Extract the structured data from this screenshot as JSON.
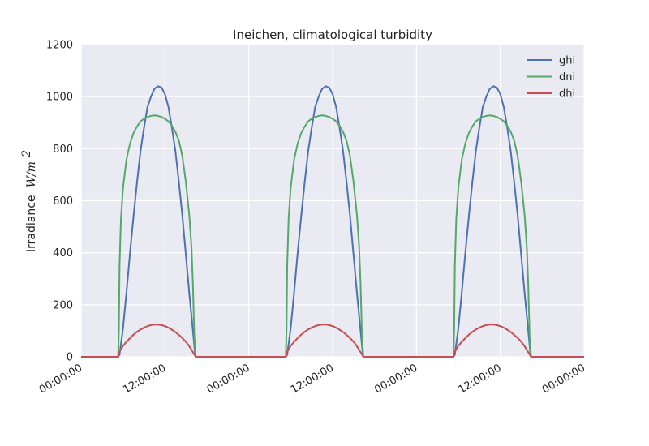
{
  "chart_data": {
    "type": "line",
    "title": "Ineichen, climatological turbidity",
    "ylabel_text": "Irradiance",
    "ylabel_math": "W/m",
    "ylabel_sup": "2",
    "xlabel": "",
    "ylim": [
      0,
      1200
    ],
    "y_ticks": [
      "0",
      "200",
      "400",
      "600",
      "800",
      "1000",
      "1200"
    ],
    "y_tick_values": [
      0,
      200,
      400,
      600,
      800,
      1000,
      1200
    ],
    "xlim_hours": [
      0,
      72
    ],
    "x_ticks": [
      "00:00:00",
      "12:00:00",
      "00:00:00",
      "12:00:00",
      "00:00:00",
      "12:00:00",
      "00:00:00"
    ],
    "x_tick_hours": [
      0,
      12,
      24,
      36,
      48,
      60,
      72
    ],
    "grid": true,
    "legend_position": "top-right",
    "series": [
      {
        "name": "ghi",
        "color": "#4c72b0",
        "points": [
          [
            0,
            0
          ],
          [
            5.3,
            0
          ],
          [
            5.5,
            8
          ],
          [
            6,
            110
          ],
          [
            6.5,
            250
          ],
          [
            7,
            400
          ],
          [
            7.5,
            540
          ],
          [
            8,
            670
          ],
          [
            8.5,
            790
          ],
          [
            9,
            880
          ],
          [
            9.5,
            960
          ],
          [
            10,
            1000
          ],
          [
            10.5,
            1030
          ],
          [
            11,
            1040
          ],
          [
            11.5,
            1035
          ],
          [
            12,
            1010
          ],
          [
            12.5,
            960
          ],
          [
            13,
            880
          ],
          [
            13.5,
            790
          ],
          [
            14,
            670
          ],
          [
            14.5,
            540
          ],
          [
            15,
            390
          ],
          [
            15.5,
            240
          ],
          [
            16,
            100
          ],
          [
            16.3,
            15
          ],
          [
            16.4,
            0
          ],
          [
            29.3,
            0
          ],
          [
            29.5,
            8
          ],
          [
            30,
            110
          ],
          [
            30.5,
            250
          ],
          [
            31,
            400
          ],
          [
            31.5,
            540
          ],
          [
            32,
            670
          ],
          [
            32.5,
            790
          ],
          [
            33,
            880
          ],
          [
            33.5,
            960
          ],
          [
            34,
            1000
          ],
          [
            34.5,
            1030
          ],
          [
            35,
            1040
          ],
          [
            35.5,
            1035
          ],
          [
            36,
            1010
          ],
          [
            36.5,
            960
          ],
          [
            37,
            880
          ],
          [
            37.5,
            790
          ],
          [
            38,
            670
          ],
          [
            38.5,
            540
          ],
          [
            39,
            390
          ],
          [
            39.5,
            240
          ],
          [
            40,
            100
          ],
          [
            40.3,
            15
          ],
          [
            40.4,
            0
          ],
          [
            53.3,
            0
          ],
          [
            53.5,
            8
          ],
          [
            54,
            110
          ],
          [
            54.5,
            250
          ],
          [
            55,
            400
          ],
          [
            55.5,
            540
          ],
          [
            56,
            670
          ],
          [
            56.5,
            790
          ],
          [
            57,
            880
          ],
          [
            57.5,
            960
          ],
          [
            58,
            1000
          ],
          [
            58.5,
            1030
          ],
          [
            59,
            1040
          ],
          [
            59.5,
            1035
          ],
          [
            60,
            1010
          ],
          [
            60.5,
            960
          ],
          [
            61,
            880
          ],
          [
            61.5,
            790
          ],
          [
            62,
            670
          ],
          [
            62.5,
            540
          ],
          [
            63,
            390
          ],
          [
            63.5,
            240
          ],
          [
            64,
            100
          ],
          [
            64.3,
            15
          ],
          [
            64.4,
            0
          ],
          [
            72,
            0
          ]
        ]
      },
      {
        "name": "dni",
        "color": "#55a868",
        "points": [
          [
            0,
            0
          ],
          [
            5.3,
            0
          ],
          [
            5.4,
            100
          ],
          [
            5.5,
            350
          ],
          [
            5.7,
            530
          ],
          [
            6,
            650
          ],
          [
            6.5,
            760
          ],
          [
            7,
            820
          ],
          [
            7.5,
            860
          ],
          [
            8,
            885
          ],
          [
            8.5,
            905
          ],
          [
            9,
            915
          ],
          [
            9.5,
            922
          ],
          [
            10,
            926
          ],
          [
            10.5,
            928
          ],
          [
            11,
            926
          ],
          [
            11.5,
            922
          ],
          [
            12,
            915
          ],
          [
            12.5,
            905
          ],
          [
            13,
            888
          ],
          [
            13.5,
            865
          ],
          [
            14,
            830
          ],
          [
            14.5,
            770
          ],
          [
            15,
            670
          ],
          [
            15.5,
            540
          ],
          [
            15.8,
            420
          ],
          [
            16,
            280
          ],
          [
            16.2,
            80
          ],
          [
            16.4,
            0
          ],
          [
            29.3,
            0
          ],
          [
            29.4,
            100
          ],
          [
            29.5,
            350
          ],
          [
            29.7,
            530
          ],
          [
            30,
            650
          ],
          [
            30.5,
            760
          ],
          [
            31,
            820
          ],
          [
            31.5,
            860
          ],
          [
            32,
            885
          ],
          [
            32.5,
            905
          ],
          [
            33,
            915
          ],
          [
            33.5,
            922
          ],
          [
            34,
            926
          ],
          [
            34.5,
            928
          ],
          [
            35,
            926
          ],
          [
            35.5,
            922
          ],
          [
            36,
            915
          ],
          [
            36.5,
            905
          ],
          [
            37,
            888
          ],
          [
            37.5,
            865
          ],
          [
            38,
            830
          ],
          [
            38.5,
            770
          ],
          [
            39,
            670
          ],
          [
            39.5,
            540
          ],
          [
            39.8,
            420
          ],
          [
            40,
            280
          ],
          [
            40.2,
            80
          ],
          [
            40.4,
            0
          ],
          [
            53.3,
            0
          ],
          [
            53.4,
            100
          ],
          [
            53.5,
            350
          ],
          [
            53.7,
            530
          ],
          [
            54,
            650
          ],
          [
            54.5,
            760
          ],
          [
            55,
            820
          ],
          [
            55.5,
            860
          ],
          [
            56,
            885
          ],
          [
            56.5,
            905
          ],
          [
            57,
            915
          ],
          [
            57.5,
            922
          ],
          [
            58,
            926
          ],
          [
            58.5,
            928
          ],
          [
            59,
            926
          ],
          [
            59.5,
            922
          ],
          [
            60,
            915
          ],
          [
            60.5,
            905
          ],
          [
            61,
            888
          ],
          [
            61.5,
            865
          ],
          [
            62,
            830
          ],
          [
            62.5,
            770
          ],
          [
            63,
            670
          ],
          [
            63.5,
            540
          ],
          [
            63.8,
            420
          ],
          [
            64,
            280
          ],
          [
            64.2,
            80
          ],
          [
            64.4,
            0
          ],
          [
            72,
            0
          ]
        ]
      },
      {
        "name": "dhi",
        "color": "#c44e52",
        "points": [
          [
            0,
            0
          ],
          [
            5.3,
            0
          ],
          [
            5.5,
            20
          ],
          [
            6,
            42
          ],
          [
            6.5,
            58
          ],
          [
            7,
            72
          ],
          [
            7.5,
            85
          ],
          [
            8,
            96
          ],
          [
            8.5,
            105
          ],
          [
            9,
            112
          ],
          [
            9.5,
            118
          ],
          [
            10,
            122
          ],
          [
            10.5,
            124
          ],
          [
            11,
            124
          ],
          [
            11.5,
            122
          ],
          [
            12,
            118
          ],
          [
            12.5,
            112
          ],
          [
            13,
            104
          ],
          [
            13.5,
            95
          ],
          [
            14,
            84
          ],
          [
            14.5,
            72
          ],
          [
            15,
            58
          ],
          [
            15.5,
            40
          ],
          [
            16,
            18
          ],
          [
            16.4,
            0
          ],
          [
            29.3,
            0
          ],
          [
            29.5,
            20
          ],
          [
            30,
            42
          ],
          [
            30.5,
            58
          ],
          [
            31,
            72
          ],
          [
            31.5,
            85
          ],
          [
            32,
            96
          ],
          [
            32.5,
            105
          ],
          [
            33,
            112
          ],
          [
            33.5,
            118
          ],
          [
            34,
            122
          ],
          [
            34.5,
            124
          ],
          [
            35,
            124
          ],
          [
            35.5,
            122
          ],
          [
            36,
            118
          ],
          [
            36.5,
            112
          ],
          [
            37,
            104
          ],
          [
            37.5,
            95
          ],
          [
            38,
            84
          ],
          [
            38.5,
            72
          ],
          [
            39,
            58
          ],
          [
            39.5,
            40
          ],
          [
            40,
            18
          ],
          [
            40.4,
            0
          ],
          [
            53.3,
            0
          ],
          [
            53.5,
            20
          ],
          [
            54,
            42
          ],
          [
            54.5,
            58
          ],
          [
            55,
            72
          ],
          [
            55.5,
            85
          ],
          [
            56,
            96
          ],
          [
            56.5,
            105
          ],
          [
            57,
            112
          ],
          [
            57.5,
            118
          ],
          [
            58,
            122
          ],
          [
            58.5,
            124
          ],
          [
            59,
            124
          ],
          [
            59.5,
            122
          ],
          [
            60,
            118
          ],
          [
            60.5,
            112
          ],
          [
            61,
            104
          ],
          [
            61.5,
            95
          ],
          [
            62,
            84
          ],
          [
            62.5,
            72
          ],
          [
            63,
            58
          ],
          [
            63.5,
            40
          ],
          [
            64,
            18
          ],
          [
            64.4,
            0
          ],
          [
            72,
            0
          ]
        ]
      }
    ],
    "colors": {
      "plot_background": "#eaeaf2",
      "grid": "#ffffff",
      "text": "#222222"
    }
  }
}
